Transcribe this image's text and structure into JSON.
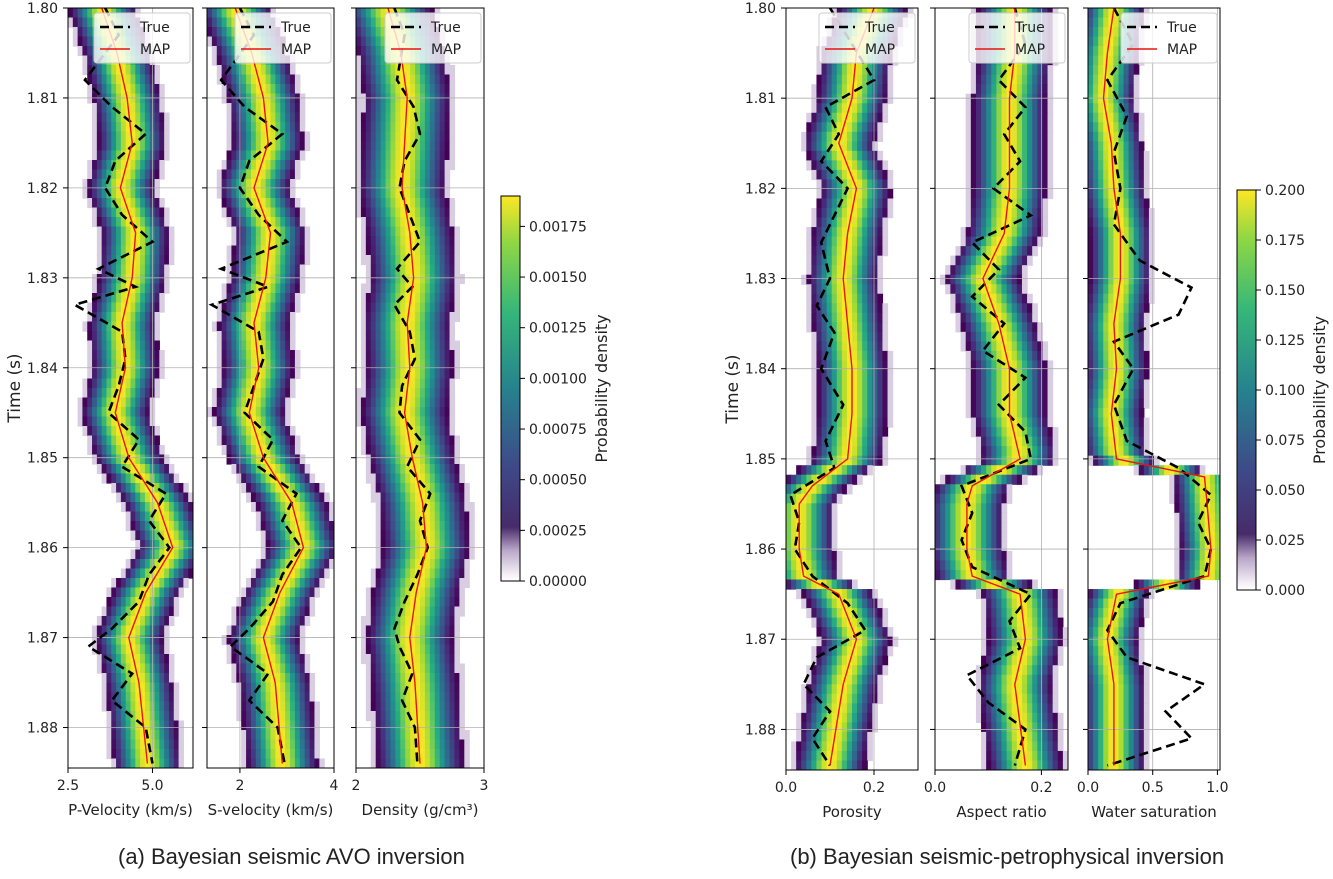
{
  "captions": {
    "a": "(a) Bayesian seismic AVO inversion",
    "b": "(b) Bayesian seismic-petrophysical inversion"
  },
  "legend": {
    "true_label": "True",
    "map_label": "MAP"
  },
  "colors": {
    "true_line": "#000000",
    "map_line": "#e8140f",
    "colormap": "viridis"
  },
  "chart_data": [
    {
      "type": "heatmap",
      "group": "a",
      "ylabel": "Time (s)",
      "ylim": [
        1.8845,
        1.8
      ],
      "yticks": [
        "1.80",
        "1.81",
        "1.82",
        "1.83",
        "1.84",
        "1.85",
        "1.86",
        "1.87",
        "1.88"
      ],
      "colorbar": {
        "label": "Probability density",
        "range": [
          0,
          0.0019
        ],
        "ticks": [
          "0.00000",
          "0.00025",
          "0.00050",
          "0.00075",
          "0.00100",
          "0.00125",
          "0.00150",
          "0.00175"
        ]
      },
      "panels": [
        {
          "xlabel": "P-Velocity (km/s)",
          "xlim": [
            2.5,
            6.2
          ],
          "xticks": [
            "2.5",
            "5.0"
          ],
          "xtick_values": [
            2.5,
            5.0
          ],
          "spread": 0.5,
          "map": {
            "times": [
              1.8,
              1.805,
              1.81,
              1.815,
              1.82,
              1.825,
              1.83,
              1.835,
              1.84,
              1.845,
              1.85,
              1.855,
              1.86,
              1.865,
              1.87,
              1.875,
              1.884
            ],
            "values": [
              3.5,
              3.95,
              4.25,
              4.4,
              4.05,
              4.5,
              4.4,
              4.1,
              4.2,
              3.9,
              4.3,
              5.15,
              5.6,
              4.8,
              4.3,
              4.6,
              4.85
            ]
          },
          "true": {
            "times": [
              1.8,
              1.803,
              1.808,
              1.811,
              1.814,
              1.817,
              1.82,
              1.823,
              1.826,
              1.829,
              1.831,
              1.833,
              1.836,
              1.839,
              1.842,
              1.845,
              1.848,
              1.851,
              1.854,
              1.857,
              1.86,
              1.863,
              1.866,
              1.869,
              1.871,
              1.874,
              1.877,
              1.88,
              1.884
            ],
            "values": [
              3.6,
              4.0,
              3.0,
              3.8,
              4.8,
              3.9,
              3.6,
              4.1,
              5.0,
              3.4,
              4.5,
              2.7,
              4.1,
              4.2,
              4.0,
              3.7,
              4.6,
              4.1,
              5.4,
              4.9,
              5.5,
              4.9,
              4.6,
              3.8,
              3.1,
              4.4,
              3.8,
              4.8,
              5.0
            ]
          }
        },
        {
          "xlabel": "S-velocity (km/s)",
          "xlim": [
            1.3,
            4.0
          ],
          "xticks": [
            "2",
            "4"
          ],
          "xtick_values": [
            2,
            4
          ],
          "spread": 0.38,
          "map": {
            "times": [
              1.8,
              1.805,
              1.81,
              1.815,
              1.82,
              1.825,
              1.83,
              1.835,
              1.84,
              1.845,
              1.85,
              1.855,
              1.86,
              1.865,
              1.87,
              1.875,
              1.884
            ],
            "values": [
              1.9,
              2.25,
              2.5,
              2.6,
              2.3,
              2.65,
              2.55,
              2.3,
              2.4,
              2.2,
              2.5,
              3.1,
              3.35,
              2.85,
              2.5,
              2.75,
              2.9
            ]
          },
          "true": {
            "times": [
              1.8,
              1.803,
              1.808,
              1.811,
              1.814,
              1.817,
              1.82,
              1.823,
              1.826,
              1.829,
              1.831,
              1.833,
              1.836,
              1.839,
              1.842,
              1.845,
              1.848,
              1.851,
              1.854,
              1.857,
              1.86,
              1.863,
              1.866,
              1.869,
              1.871,
              1.874,
              1.877,
              1.88,
              1.884
            ],
            "values": [
              2.0,
              2.3,
              1.6,
              2.1,
              2.9,
              2.2,
              2.0,
              2.4,
              3.0,
              1.6,
              2.6,
              1.4,
              2.4,
              2.5,
              2.3,
              2.1,
              2.7,
              2.4,
              3.2,
              2.9,
              3.3,
              2.9,
              2.7,
              2.2,
              1.8,
              2.6,
              2.2,
              2.8,
              2.95
            ]
          }
        },
        {
          "xlabel": "Density (g/cm³)",
          "xlim": [
            2.0,
            3.0
          ],
          "xticks": [
            "2",
            "3"
          ],
          "xtick_values": [
            2,
            3
          ],
          "spread": 0.17,
          "map": {
            "times": [
              1.8,
              1.805,
              1.81,
              1.815,
              1.82,
              1.825,
              1.83,
              1.835,
              1.84,
              1.845,
              1.85,
              1.855,
              1.86,
              1.865,
              1.87,
              1.875,
              1.884
            ],
            "values": [
              2.25,
              2.35,
              2.4,
              2.38,
              2.36,
              2.42,
              2.45,
              2.4,
              2.42,
              2.38,
              2.44,
              2.52,
              2.55,
              2.47,
              2.42,
              2.46,
              2.5
            ]
          },
          "true": {
            "times": [
              1.8,
              1.803,
              1.808,
              1.811,
              1.814,
              1.817,
              1.82,
              1.823,
              1.826,
              1.829,
              1.831,
              1.833,
              1.836,
              1.839,
              1.842,
              1.845,
              1.848,
              1.851,
              1.854,
              1.857,
              1.86,
              1.863,
              1.866,
              1.869,
              1.871,
              1.874,
              1.877,
              1.88,
              1.884
            ],
            "values": [
              2.3,
              2.38,
              2.32,
              2.45,
              2.5,
              2.38,
              2.34,
              2.42,
              2.5,
              2.32,
              2.44,
              2.3,
              2.42,
              2.46,
              2.36,
              2.34,
              2.5,
              2.4,
              2.58,
              2.5,
              2.56,
              2.48,
              2.38,
              2.3,
              2.34,
              2.44,
              2.36,
              2.46,
              2.48
            ]
          }
        }
      ]
    },
    {
      "type": "heatmap",
      "group": "b",
      "ylabel": "Time (s)",
      "ylim": [
        1.8845,
        1.8
      ],
      "yticks": [
        "1.80",
        "1.81",
        "1.82",
        "1.83",
        "1.84",
        "1.85",
        "1.86",
        "1.87",
        "1.88"
      ],
      "colorbar": {
        "label": "Probability density",
        "range": [
          0,
          0.2
        ],
        "ticks": [
          "0.000",
          "0.025",
          "0.050",
          "0.075",
          "0.100",
          "0.125",
          "0.150",
          "0.175",
          "0.200"
        ]
      },
      "panels": [
        {
          "xlabel": "Porosity",
          "xlim": [
            0.0,
            0.3
          ],
          "xticks": [
            "0.0",
            "0.2"
          ],
          "xtick_values": [
            0.0,
            0.2
          ],
          "spread": 0.04,
          "map": {
            "times": [
              1.8,
              1.805,
              1.81,
              1.815,
              1.82,
              1.825,
              1.83,
              1.835,
              1.84,
              1.845,
              1.85,
              1.853,
              1.855,
              1.86,
              1.863,
              1.865,
              1.87,
              1.875,
              1.884
            ],
            "values": [
              0.2,
              0.16,
              0.15,
              0.12,
              0.16,
              0.14,
              0.13,
              0.14,
              0.15,
              0.15,
              0.14,
              0.06,
              0.03,
              0.03,
              0.04,
              0.12,
              0.16,
              0.13,
              0.1
            ]
          },
          "true": {
            "times": [
              1.8,
              1.804,
              1.808,
              1.811,
              1.814,
              1.817,
              1.82,
              1.823,
              1.826,
              1.83,
              1.833,
              1.836,
              1.84,
              1.844,
              1.848,
              1.851,
              1.854,
              1.857,
              1.86,
              1.863,
              1.866,
              1.869,
              1.872,
              1.875,
              1.878,
              1.881,
              1.884
            ],
            "values": [
              0.1,
              0.15,
              0.2,
              0.09,
              0.12,
              0.08,
              0.14,
              0.11,
              0.08,
              0.1,
              0.07,
              0.11,
              0.08,
              0.13,
              0.09,
              0.11,
              0.01,
              0.03,
              0.02,
              0.06,
              0.14,
              0.18,
              0.07,
              0.04,
              0.1,
              0.06,
              0.1
            ]
          }
        },
        {
          "xlabel": "Aspect ratio",
          "xlim": [
            0.0,
            0.25
          ],
          "xticks": [
            "0.0",
            "0.2"
          ],
          "xtick_values": [
            0.0,
            0.2
          ],
          "spread": 0.035,
          "map": {
            "times": [
              1.8,
              1.805,
              1.81,
              1.815,
              1.82,
              1.825,
              1.83,
              1.835,
              1.84,
              1.845,
              1.85,
              1.853,
              1.855,
              1.86,
              1.863,
              1.865,
              1.87,
              1.875,
              1.884
            ],
            "values": [
              0.15,
              0.15,
              0.14,
              0.14,
              0.14,
              0.13,
              0.09,
              0.12,
              0.14,
              0.14,
              0.16,
              0.07,
              0.06,
              0.06,
              0.07,
              0.16,
              0.17,
              0.15,
              0.17
            ]
          },
          "true": {
            "times": [
              1.8,
              1.804,
              1.808,
              1.811,
              1.814,
              1.817,
              1.82,
              1.823,
              1.826,
              1.829,
              1.832,
              1.835,
              1.838,
              1.841,
              1.844,
              1.847,
              1.85,
              1.853,
              1.856,
              1.859,
              1.862,
              1.865,
              1.868,
              1.871,
              1.874,
              1.877,
              1.88,
              1.884
            ],
            "values": [
              0.15,
              0.17,
              0.12,
              0.17,
              0.13,
              0.16,
              0.11,
              0.18,
              0.07,
              0.12,
              0.07,
              0.13,
              0.09,
              0.17,
              0.12,
              0.17,
              0.18,
              0.05,
              0.07,
              0.05,
              0.07,
              0.18,
              0.14,
              0.16,
              0.06,
              0.1,
              0.17,
              0.15
            ]
          }
        },
        {
          "xlabel": "Water saturation",
          "xlim": [
            0.0,
            1.02
          ],
          "xticks": [
            "0.0",
            "0.5",
            "1.0"
          ],
          "xtick_values": [
            0.0,
            0.5,
            1.0
          ],
          "spread": 0.12,
          "map": {
            "times": [
              1.8,
              1.805,
              1.81,
              1.815,
              1.82,
              1.825,
              1.83,
              1.835,
              1.84,
              1.845,
              1.85,
              1.852,
              1.855,
              1.86,
              1.863,
              1.865,
              1.87,
              1.875,
              1.884
            ],
            "values": [
              0.2,
              0.15,
              0.12,
              0.18,
              0.2,
              0.25,
              0.25,
              0.2,
              0.22,
              0.18,
              0.22,
              0.9,
              0.92,
              0.95,
              0.93,
              0.22,
              0.15,
              0.2,
              0.2
            ]
          },
          "true": {
            "times": [
              1.8,
              1.804,
              1.808,
              1.812,
              1.816,
              1.82,
              1.824,
              1.828,
              1.831,
              1.834,
              1.837,
              1.84,
              1.844,
              1.848,
              1.851,
              1.854,
              1.857,
              1.86,
              1.863,
              1.866,
              1.869,
              1.872,
              1.875,
              1.878,
              1.881,
              1.884
            ],
            "values": [
              0.2,
              0.35,
              0.15,
              0.3,
              0.2,
              0.25,
              0.2,
              0.4,
              0.8,
              0.7,
              0.2,
              0.35,
              0.2,
              0.3,
              0.7,
              0.95,
              0.85,
              0.95,
              0.9,
              0.25,
              0.15,
              0.3,
              0.9,
              0.6,
              0.8,
              0.15
            ]
          }
        }
      ]
    }
  ]
}
